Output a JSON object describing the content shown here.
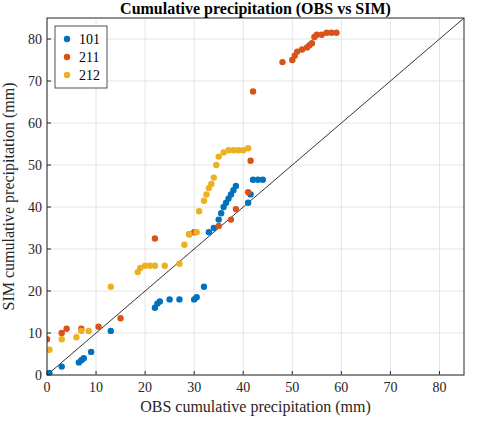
{
  "chart_data": {
    "type": "scatter",
    "title": "Cumulative precipitation (OBS vs SIM)",
    "x_label": "OBS cumulative precipitation (mm)",
    "y_label": "SIM cumulative precipitation (mm)",
    "xlim": [
      0,
      85
    ],
    "ylim": [
      0,
      85
    ],
    "xticks": [
      0,
      10,
      20,
      30,
      40,
      50,
      60,
      70,
      80
    ],
    "yticks": [
      0,
      10,
      20,
      30,
      40,
      50,
      60,
      70,
      80
    ],
    "grid": true,
    "legend": "top-left",
    "marker": "circle",
    "series": [
      {
        "name": "101",
        "color": "#0072BD",
        "x": [
          0,
          0.5,
          3,
          6.5,
          7,
          7.5,
          9,
          13,
          22,
          22.5,
          23,
          25,
          27,
          30,
          30.5,
          32,
          33,
          34,
          35,
          35.5,
          36,
          36.5,
          37,
          37.5,
          38,
          38.5,
          41,
          41.5,
          42,
          43,
          44
        ],
        "values": [
          0,
          0.5,
          2,
          3,
          3.5,
          4,
          5.5,
          10.5,
          16,
          17,
          17.5,
          18,
          18,
          18,
          18.5,
          21,
          34,
          35,
          37,
          38.5,
          40,
          41,
          42,
          43,
          44,
          45,
          41,
          43,
          46.5,
          46.5,
          46.5
        ]
      },
      {
        "name": "211",
        "color": "#D95319",
        "x": [
          0,
          3,
          4,
          7,
          10.5,
          15,
          22,
          29,
          30,
          35,
          37.5,
          38.5,
          41,
          41.5,
          42,
          48,
          50,
          50.5,
          51,
          52,
          53,
          53.5,
          54,
          54.5,
          55,
          56,
          57,
          58,
          59
        ],
        "values": [
          8.5,
          10,
          11,
          11,
          11.5,
          13.5,
          32.5,
          33.5,
          34,
          35.5,
          37,
          39.5,
          43.5,
          51,
          67.5,
          74.5,
          75,
          76,
          77,
          77.5,
          78,
          78.5,
          79,
          80.5,
          81,
          81,
          81.5,
          81.5,
          81.5
        ]
      },
      {
        "name": "212",
        "color": "#EDB120",
        "x": [
          0.5,
          3,
          6,
          7,
          8.5,
          13,
          18.5,
          19,
          20,
          21,
          22,
          24,
          27,
          28,
          29,
          30.5,
          31,
          32,
          32.5,
          33,
          33.5,
          34,
          34.5,
          35,
          36,
          37,
          38,
          39,
          40,
          41
        ],
        "values": [
          6,
          8.5,
          9,
          10.5,
          10.5,
          21,
          24.5,
          25.5,
          26,
          26,
          26,
          26,
          26.5,
          31,
          33.5,
          34,
          39,
          41.5,
          43,
          44.5,
          45.5,
          47,
          50,
          52,
          53,
          53.5,
          53.5,
          53.5,
          53.5,
          54
        ]
      }
    ]
  }
}
